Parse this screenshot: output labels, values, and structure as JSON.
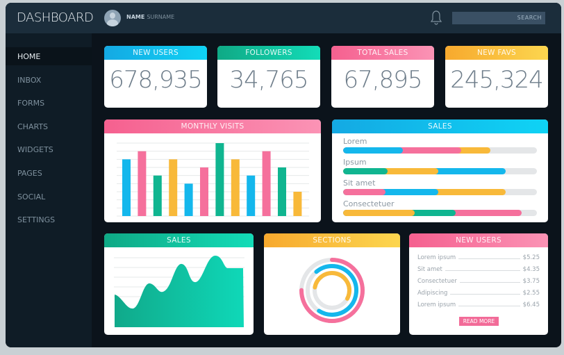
{
  "app": {
    "title": "DASHBOARD",
    "user_first": "NAME",
    "user_last": "SURNAME",
    "search_label": "SEARCH",
    "icons": {
      "bell": "bell-icon",
      "avatar": "user-avatar-icon"
    }
  },
  "sidebar": {
    "items": [
      {
        "label": "HOME",
        "active": true
      },
      {
        "label": "INBOX"
      },
      {
        "label": "FORMS"
      },
      {
        "label": "CHARTS"
      },
      {
        "label": "WIDGETS"
      },
      {
        "label": "PAGES"
      },
      {
        "label": "SOCIAL"
      },
      {
        "label": "SETTINGS"
      }
    ]
  },
  "stats": [
    {
      "label": "NEW USERS",
      "value": "678,935",
      "color": "blue"
    },
    {
      "label": "FOLLOWERS",
      "value": "34,765",
      "color": "green"
    },
    {
      "label": "TOTAL SALES",
      "value": "67,895",
      "color": "pink"
    },
    {
      "label": "NEW FAVS",
      "value": "245,324",
      "color": "yellow"
    }
  ],
  "colors": {
    "blue": "#14b7ec",
    "green": "#10b590",
    "pink": "#f5709c",
    "yellow": "#f8b93a",
    "track": "#e4e6e8"
  },
  "monthly_visits": {
    "title": "MONTHLY VISITS",
    "values": [
      7,
      8,
      5,
      7,
      4,
      6,
      9,
      7,
      5,
      8,
      6,
      3
    ],
    "max": 9,
    "colors": [
      "blue",
      "pink",
      "green",
      "yellow",
      "blue",
      "pink",
      "green",
      "yellow",
      "blue",
      "pink",
      "green",
      "yellow"
    ]
  },
  "sales_bars": {
    "title": "SALES",
    "items": [
      {
        "label": "Lorem",
        "segments": [
          {
            "color": "blue",
            "pct": 31
          },
          {
            "color": "pink",
            "pct": 30
          },
          {
            "color": "yellow",
            "pct": 15
          }
        ]
      },
      {
        "label": "Ipsum",
        "segments": [
          {
            "color": "green",
            "pct": 23
          },
          {
            "color": "yellow",
            "pct": 26
          },
          {
            "color": "blue",
            "pct": 35
          }
        ]
      },
      {
        "label": "Sit amet",
        "segments": [
          {
            "color": "pink",
            "pct": 22
          },
          {
            "color": "blue",
            "pct": 27
          },
          {
            "color": "yellow",
            "pct": 35
          }
        ]
      },
      {
        "label": "Consectetuer",
        "segments": [
          {
            "color": "yellow",
            "pct": 37
          },
          {
            "color": "green",
            "pct": 21
          },
          {
            "color": "pink",
            "pct": 34
          }
        ]
      }
    ]
  },
  "sales_area": {
    "title": "SALES"
  },
  "sections": {
    "title": "SECTIONS",
    "rings": [
      {
        "color": "pink",
        "pct": 75
      },
      {
        "color": "blue",
        "pct": 70
      },
      {
        "color": "yellow",
        "pct": 55
      }
    ]
  },
  "new_users": {
    "title": "NEW USERS",
    "rows": [
      {
        "label": "Lorem ipsum",
        "value": "$5.25"
      },
      {
        "label": "Sit amet",
        "value": "$4.35"
      },
      {
        "label": "Consectetuer",
        "value": "$3.75"
      },
      {
        "label": "Adipiscing",
        "value": "$2.55"
      },
      {
        "label": "Lorem ipsum",
        "value": "$6.45"
      }
    ],
    "button": "READ MORE"
  }
}
